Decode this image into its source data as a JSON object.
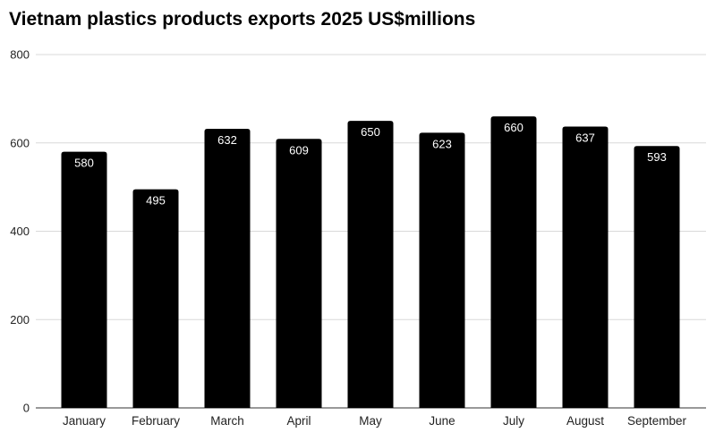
{
  "chart_data": {
    "type": "bar",
    "title": "Vietnam plastics products exports 2025 US$millions",
    "xlabel": "",
    "ylabel": "",
    "categories": [
      "January",
      "February",
      "March",
      "April",
      "May",
      "June",
      "July",
      "August",
      "September"
    ],
    "values": [
      580,
      495,
      632,
      609,
      650,
      623,
      660,
      637,
      593
    ],
    "ylim": [
      0,
      800
    ],
    "yticks": [
      0,
      200,
      400,
      600,
      800
    ],
    "grid": true,
    "legend": "none",
    "bar_color": "#000000",
    "label_color": "#ffffff"
  }
}
